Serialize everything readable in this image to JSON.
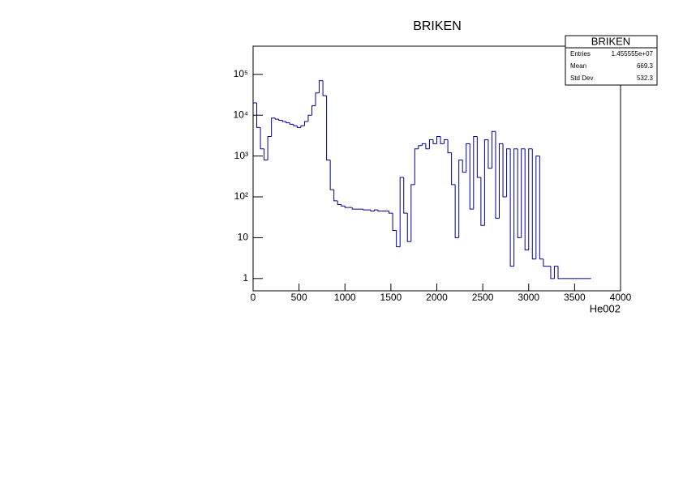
{
  "chart_data": {
    "type": "histogram",
    "title": "BRIKEN",
    "xlabel": "He002",
    "color": "#000099",
    "log_y": true,
    "bins": [
      0,
      40,
      80,
      120,
      160,
      200,
      240,
      280,
      320,
      360,
      400,
      440,
      480,
      520,
      560,
      600,
      640,
      680,
      720,
      760,
      800,
      840,
      880,
      920,
      960,
      1000,
      1040,
      1080,
      1120,
      1160,
      1200,
      1240,
      1280,
      1320,
      1360,
      1400,
      1440,
      1480,
      1520,
      1560,
      1600,
      1640,
      1680,
      1720,
      1760,
      1800,
      1840,
      1880,
      1920,
      1960,
      2000,
      2040,
      2080,
      2120,
      2160,
      2200,
      2240,
      2280,
      2320,
      2360,
      2400,
      2440,
      2480,
      2520,
      2560,
      2600,
      2640,
      2680,
      2720,
      2760,
      2800,
      2840,
      2880,
      2920,
      2960,
      3000,
      3040,
      3080,
      3120,
      3160,
      3200,
      3240,
      3280,
      3320,
      3360,
      3400,
      3440,
      3480,
      3520,
      3560,
      3600,
      3640,
      3680
    ],
    "values": [
      20000,
      5000,
      1500,
      800,
      3000,
      8500,
      8000,
      7500,
      7000,
      6500,
      6000,
      5500,
      5000,
      5500,
      7000,
      10000,
      17000,
      35000,
      70000,
      30000,
      800,
      150,
      80,
      65,
      60,
      55,
      55,
      50,
      50,
      50,
      48,
      48,
      45,
      48,
      45,
      45,
      45,
      40,
      15,
      6,
      300,
      40,
      8,
      200,
      1500,
      1800,
      2000,
      1500,
      2500,
      2000,
      3000,
      2000,
      2500,
      1200,
      200,
      10,
      800,
      400,
      2000,
      50,
      3000,
      300,
      20,
      2500,
      500,
      4000,
      30,
      2000,
      100,
      1500,
      2,
      1500,
      10,
      1500,
      5,
      1500,
      3,
      1000,
      3,
      2,
      2,
      1,
      2,
      1,
      1,
      1,
      1,
      1,
      1,
      1,
      1,
      1
    ],
    "xlim": [
      0,
      4000
    ],
    "xticks": [
      0,
      500,
      1000,
      1500,
      2000,
      2500,
      3000,
      3500,
      4000
    ],
    "ylim": [
      0.5,
      490000
    ],
    "yticks": [
      1,
      10,
      {
        "value": 100,
        "label": "10²"
      },
      {
        "value": 1000,
        "label": "10³"
      },
      {
        "value": 10000,
        "label": "10⁴"
      },
      {
        "value": 100000,
        "label": "10⁵"
      }
    ],
    "stats": {
      "title": "BRIKEN",
      "rows": [
        [
          "Entries",
          "1.455555e+07"
        ],
        [
          "Mean",
          "669.3"
        ],
        [
          "Std Dev",
          "532.3"
        ]
      ]
    }
  }
}
